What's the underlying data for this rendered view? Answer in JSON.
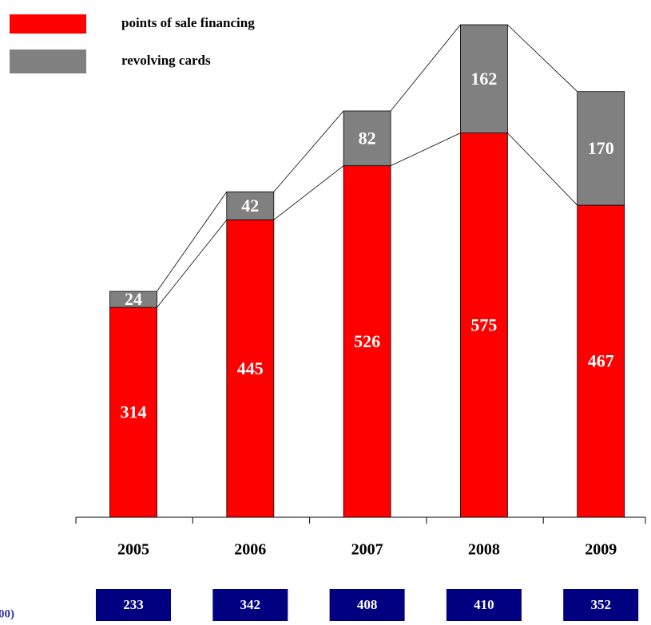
{
  "chart_data": {
    "type": "stacked_bar",
    "categories": [
      "2005",
      "2006",
      "2007",
      "2008",
      "2009"
    ],
    "series": [
      {
        "name": "points of sale financing",
        "color": "#ff0000",
        "values": [
          314,
          445,
          526,
          575,
          467
        ]
      },
      {
        "name": "revolving cards",
        "color": "#808080",
        "values": [
          24,
          42,
          82,
          162,
          170
        ]
      }
    ],
    "bottom_row": {
      "label": "00)",
      "values": [
        233,
        342,
        408,
        410,
        352
      ],
      "color": "#000080"
    }
  }
}
